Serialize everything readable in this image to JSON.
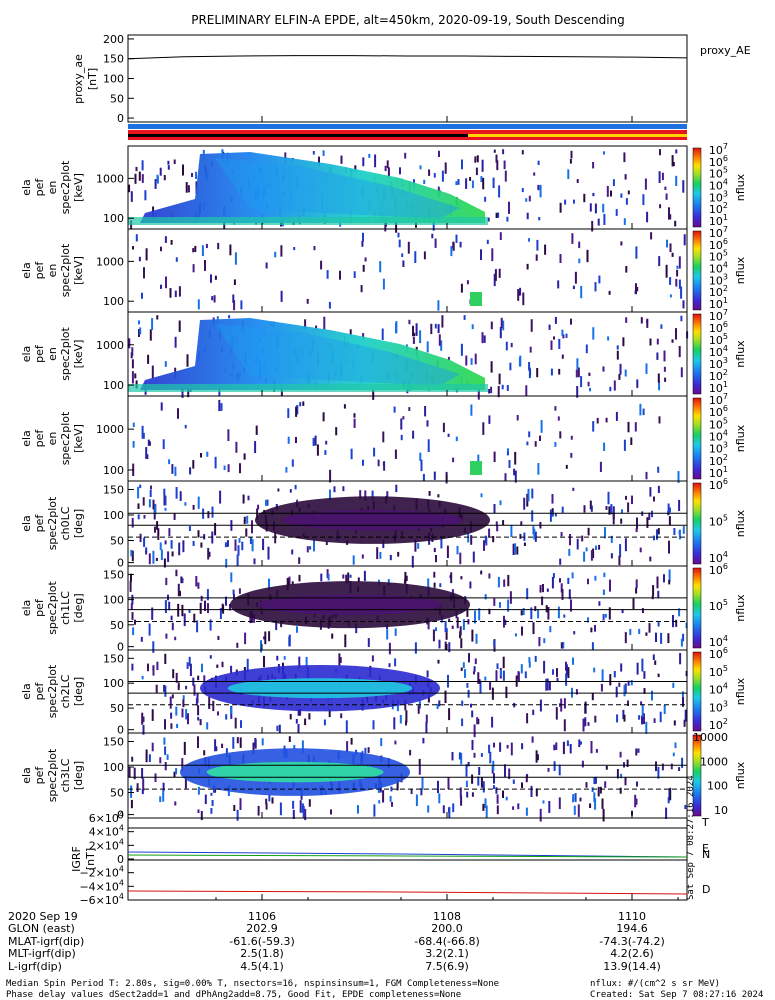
{
  "title": "PRELIMINARY ELFIN-A EPDE, alt=450km, 2020-09-19, South Descending",
  "colors": {
    "bar_top": "#1e6fe0",
    "bar_red": "#e8141e",
    "bar_black": "#000000",
    "bar_yellow": "#ffd400",
    "mag_blue": "#1c3fd0",
    "mag_green": "#10a010",
    "mag_red": "#d81010"
  },
  "chart_data": [
    {
      "type": "line",
      "name": "proxy_ae",
      "ylabel": [
        "proxy_ae",
        "[nT]"
      ],
      "legend": "proxy_AE",
      "yticks": [
        "200",
        "150",
        "100",
        "50",
        "0"
      ],
      "ylim": [
        -10,
        210
      ],
      "x": [
        0,
        0.1,
        0.2,
        0.3,
        0.4,
        0.5,
        0.6,
        0.7,
        0.8,
        0.9,
        1.0
      ],
      "values": [
        150,
        155,
        157,
        158,
        158,
        157,
        157,
        156,
        155,
        154,
        152
      ]
    },
    {
      "type": "heatmap",
      "name": "energy-spectrogram-1",
      "ylabel": [
        "ela",
        "pef",
        "en",
        "spec2plot",
        "[keV]"
      ],
      "yticks": [
        "1000",
        "100"
      ],
      "cbar_labels": [
        "10^7",
        "10^6",
        "10^5",
        "10^4",
        "10^3",
        "10^2",
        "10^1"
      ],
      "cbar_title": "nflux"
    },
    {
      "type": "heatmap",
      "name": "energy-spectrogram-2",
      "ylabel": [
        "ela",
        "pef",
        "en",
        "spec2plot",
        "[keV]"
      ],
      "yticks": [
        "1000",
        "100"
      ],
      "cbar_labels": [
        "10^7",
        "10^6",
        "10^5",
        "10^4",
        "10^3",
        "10^2",
        "10^1"
      ],
      "cbar_title": "nflux"
    },
    {
      "type": "heatmap",
      "name": "energy-spectrogram-3",
      "ylabel": [
        "ela",
        "pef",
        "en",
        "spec2plot",
        "[keV]"
      ],
      "yticks": [
        "1000",
        "100"
      ],
      "cbar_labels": [
        "10^7",
        "10^6",
        "10^5",
        "10^4",
        "10^3",
        "10^2",
        "10^1"
      ],
      "cbar_title": "nflux"
    },
    {
      "type": "heatmap",
      "name": "energy-spectrogram-4",
      "ylabel": [
        "ela",
        "pef",
        "en",
        "spec2plot",
        "[keV]"
      ],
      "yticks": [
        "1000",
        "100"
      ],
      "cbar_labels": [
        "10^7",
        "10^6",
        "10^5",
        "10^4",
        "10^3",
        "10^2",
        "10^1"
      ],
      "cbar_title": "nflux"
    },
    {
      "type": "heatmap",
      "name": "pitch-angle-ch0",
      "ylabel": [
        "ela",
        "pef",
        "spec2plot",
        "ch0LC",
        "[deg]"
      ],
      "yticks": [
        "150",
        "100",
        "50",
        "0"
      ],
      "cbar_labels": [
        "10^6",
        "10^5",
        "10^4"
      ],
      "cbar_title": "nflux"
    },
    {
      "type": "heatmap",
      "name": "pitch-angle-ch1",
      "ylabel": [
        "ela",
        "pef",
        "spec2plot",
        "ch1LC",
        "[deg]"
      ],
      "yticks": [
        "150",
        "100",
        "50",
        "0"
      ],
      "cbar_labels": [
        "10^6",
        "10^5",
        "10^4"
      ],
      "cbar_title": "nflux"
    },
    {
      "type": "heatmap",
      "name": "pitch-angle-ch2",
      "ylabel": [
        "ela",
        "pef",
        "spec2plot",
        "ch2LC",
        "[deg]"
      ],
      "yticks": [
        "150",
        "100",
        "50",
        "0"
      ],
      "cbar_labels": [
        "10^6",
        "10^5",
        "10^4",
        "10^3",
        "10^2"
      ],
      "cbar_title": "nflux"
    },
    {
      "type": "heatmap",
      "name": "pitch-angle-ch3",
      "ylabel": [
        "ela",
        "pef",
        "spec2plot",
        "ch3LC",
        "[deg]"
      ],
      "yticks": [
        "150",
        "100",
        "50",
        "0"
      ],
      "cbar_labels": [
        "10000",
        "1000",
        "100",
        "10"
      ],
      "cbar_title": "nflux"
    },
    {
      "type": "line",
      "name": "magnetic-field",
      "ylabel": [
        "IGRF",
        "[nT]"
      ],
      "yticks": [
        "6×10^4",
        "4×10^4",
        "2×10^4",
        "0",
        "−2×10^4",
        "−4×10^4",
        "−6×10^4"
      ],
      "ylim": [
        -60000,
        60000
      ],
      "legend": [
        "T",
        "E",
        "N",
        "D"
      ],
      "series": [
        {
          "name": "T",
          "values": [
            48000,
            48100,
            48200,
            48300
          ]
        },
        {
          "name": "E",
          "values": [
            12000,
            10000,
            7000,
            4000
          ]
        },
        {
          "name": "N",
          "values": [
            8000,
            7000,
            6000,
            5000
          ]
        },
        {
          "name": "D",
          "values": [
            -45000,
            -46000,
            -47500,
            -48500
          ]
        }
      ]
    }
  ],
  "xaxis": {
    "time_ticks": [
      "1106",
      "1108",
      "1110"
    ],
    "rows": [
      {
        "label": "2020 Sep 19",
        "values": [
          "1106",
          "1108",
          "1110"
        ]
      },
      {
        "label": "GLON (east)",
        "values": [
          "202.9",
          "200.0",
          "194.6"
        ]
      },
      {
        "label": "MLAT-igrf(dip)",
        "values": [
          "-61.6(-59.3)",
          "-68.4(-66.8)",
          "-74.3(-74.2)"
        ]
      },
      {
        "label": "MLT-igrf(dip)",
        "values": [
          "2.5(1.8)",
          "3.2(2.1)",
          "4.2(2.6)"
        ]
      },
      {
        "label": "L-igrf(dip)",
        "values": [
          "4.5(4.1)",
          "7.5(6.9)",
          "13.9(14.4)"
        ]
      }
    ]
  },
  "footer": {
    "line1_left": "Median Spin Period T: 2.80s, sig=0.00% T, nsectors=16, nspinsinsum=1, FGM Completeness=None",
    "line2_left": "Phase delay values dSect2add=1 and dPhAng2add=8.75, Good Fit, EPDE completeness=None",
    "line1_right": "nflux: #/(cm^2 s sr MeV)",
    "line2_right": "Created: Sat Sep  7 08:27:16 2024",
    "vertical_stamp": "Sat Sep  7 08:27:16 2024"
  }
}
